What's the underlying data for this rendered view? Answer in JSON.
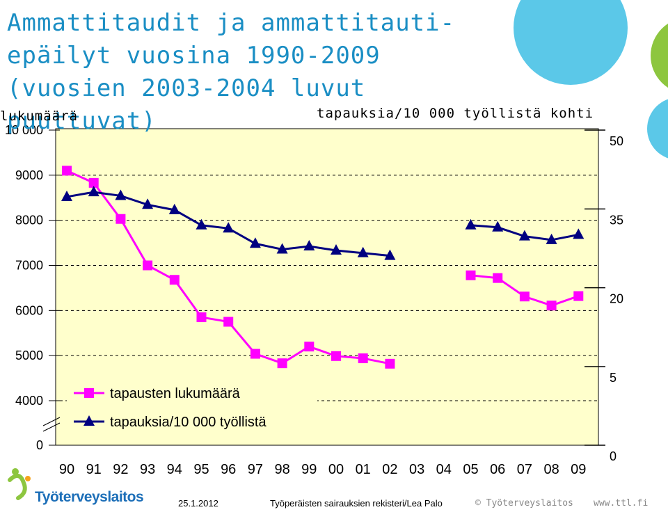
{
  "chart_data": {
    "type": "line",
    "title": "Ammattitaudit ja ammattitauti-epäilyt vuosina 1990-2009 (vuosien 2003-2004 luvut puuttuvat)",
    "ylabel_left": "lukumäärä",
    "ylabel_right": "tapauksia/10 000 työllistä kohti",
    "categories": [
      "90",
      "91",
      "92",
      "93",
      "94",
      "95",
      "96",
      "97",
      "98",
      "99",
      "00",
      "01",
      "02",
      "03",
      "04",
      "05",
      "06",
      "07",
      "08",
      "09"
    ],
    "left_ticks": [
      "0",
      "4000",
      "5000",
      "6000",
      "7000",
      "8000",
      "9000",
      "10 000"
    ],
    "right_ticks": [
      "0",
      "5",
      "20",
      "35",
      "50"
    ],
    "series": [
      {
        "name": "tapausten lukumäärä",
        "axis": "left",
        "marker": "square",
        "color": "#ff00ff",
        "values": [
          9100,
          8830,
          8030,
          7000,
          6680,
          5850,
          5750,
          5040,
          4830,
          5200,
          4990,
          4940,
          4820,
          null,
          null,
          6780,
          6720,
          6310,
          6110,
          6320
        ]
      },
      {
        "name": "tapauksia/10 000 työllistä",
        "axis": "right",
        "marker": "triangle",
        "color": "#000080",
        "values": [
          37.3,
          38.2,
          37.5,
          35.8,
          34.8,
          31.9,
          31.3,
          28.4,
          27.3,
          27.9,
          27.1,
          26.6,
          26.1,
          null,
          null,
          31.9,
          31.5,
          29.8,
          29.1,
          30.1
        ]
      }
    ],
    "grid": true,
    "legend_position": "bottom-left"
  },
  "title": "Ammattitaudit ja ammattitauti-epäilyt vuosina 1990-2009 (vuosien 2003-2004 luvut puuttuvat)",
  "colors": {
    "title": "#1a8ec4",
    "plot_background": "#ffffcc",
    "accent_cyan": "#5bc8e8",
    "accent_green": "#8dc63f",
    "accent_orange": "#f6a21b",
    "logo_blue": "#1d6fb8"
  },
  "footer": {
    "logo": "Työterveyslaitos",
    "date": "25.1.2012",
    "source": "Työperäisten sairauksien rekisteri/Lea Palo",
    "copyright": "© Työterveyslaitos",
    "url": "www.ttl.fi"
  }
}
